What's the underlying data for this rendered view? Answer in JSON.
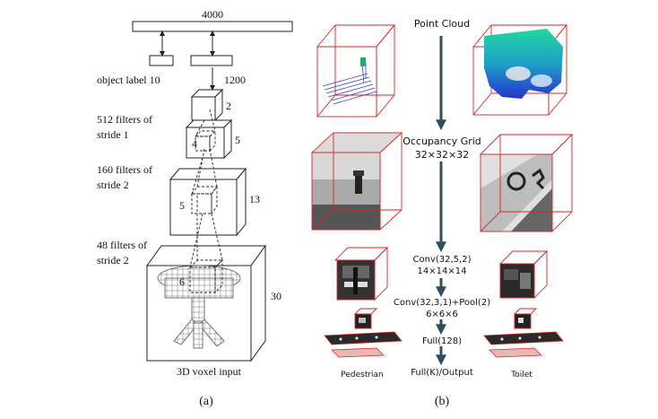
{
  "panel_a": {
    "fc_width": "4000",
    "object_label": "object label 10",
    "fc_hidden": "1200",
    "feat_size_1": "2",
    "conv1_text_l1": "512 filters of",
    "conv1_text_l2": "stride 1",
    "kernel_1": "4",
    "feat_size_2": "5",
    "conv2_text_l1": "160 filters of",
    "conv2_text_l2": "stride 2",
    "kernel_2": "5",
    "feat_size_3": "13",
    "conv3_text_l1": "48 filters of",
    "conv3_text_l2": "stride 2",
    "kernel_3": "6",
    "input_size": "30",
    "input_label": "3D voxel input",
    "caption": "(a)"
  },
  "panel_b": {
    "stage_point_cloud": "Point Cloud",
    "stage_occupancy_l1": "Occupancy Grid",
    "stage_occupancy_l2": "32×32×32",
    "stage_conv1_l1": "Conv(32,5,2)",
    "stage_conv1_l2": "14×14×14",
    "stage_conv2_l1": "Conv(32,3,1)+Pool(2)",
    "stage_conv2_l2": "6×6×6",
    "stage_full": "Full(128)",
    "stage_output": "Full(K)/Output",
    "example_left": "Pedestrian",
    "example_right": "Toilet",
    "caption": "(b)"
  },
  "colors": {
    "arrow": "#2f4f5f",
    "cube_edge": "#dd2222",
    "point_cloud_blue": "#3344cc",
    "toilet_gradient_top": "#22d8a0",
    "toilet_gradient_bottom": "#2233cc"
  }
}
